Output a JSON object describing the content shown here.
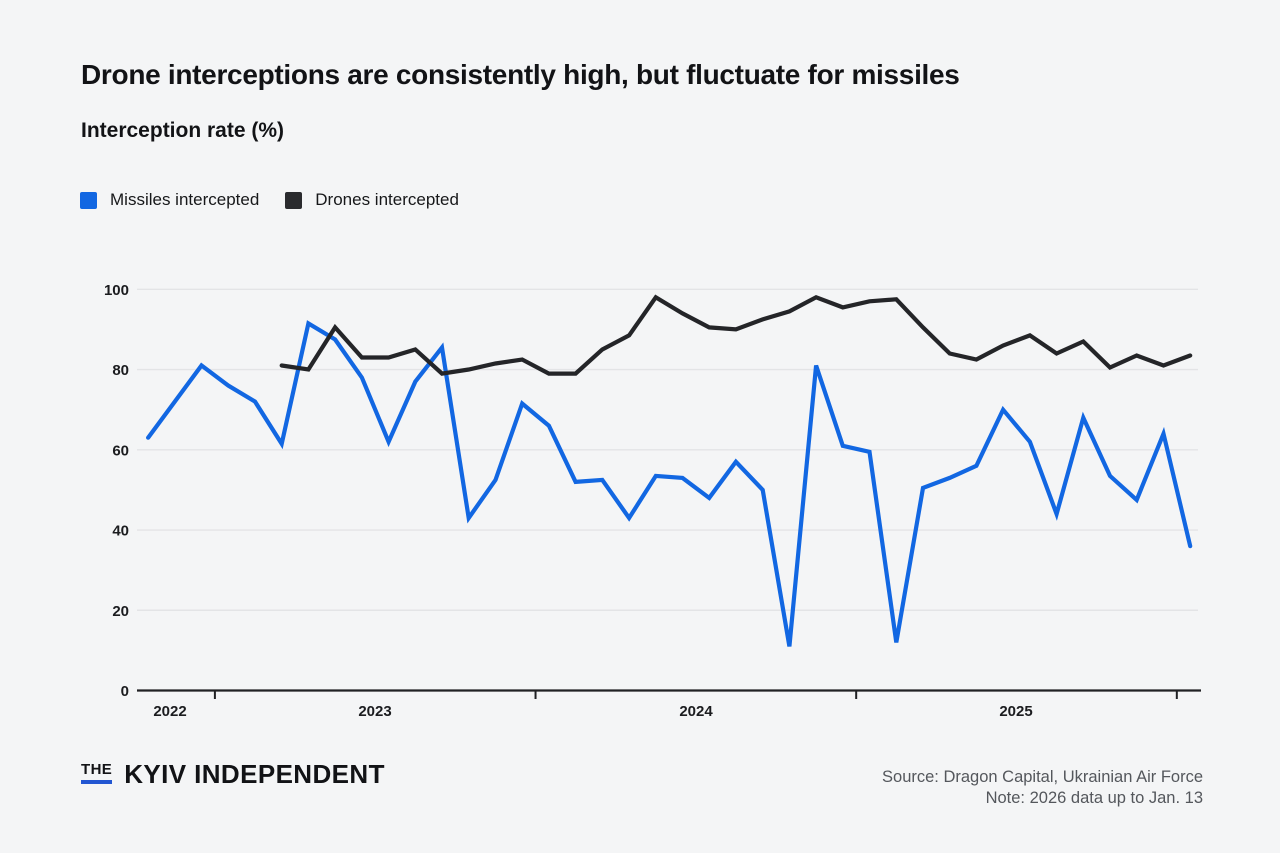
{
  "page": {
    "background": "#f4f5f6"
  },
  "header": {
    "title": "Drone interceptions are consistently high, but fluctuate for missiles",
    "subtitle": "Interception rate (%)"
  },
  "legend": {
    "items": [
      {
        "label": "Missiles intercepted",
        "color": "#1267e2"
      },
      {
        "label": "Drones intercepted",
        "color": "#2a2b2e"
      }
    ]
  },
  "chart_data": {
    "type": "line",
    "title": "Interception rate (%)",
    "x_unit": "month",
    "months": [
      "2022-10",
      "2022-11",
      "2022-12",
      "2023-01",
      "2023-02",
      "2023-03",
      "2023-04",
      "2023-05",
      "2023-06",
      "2023-07",
      "2023-08",
      "2023-09",
      "2023-10",
      "2023-11",
      "2023-12",
      "2024-01",
      "2024-02",
      "2024-03",
      "2024-04",
      "2024-05",
      "2024-06",
      "2024-07",
      "2024-08",
      "2024-09",
      "2024-10",
      "2024-11",
      "2024-12",
      "2025-01",
      "2025-02",
      "2025-03",
      "2025-04",
      "2025-05",
      "2025-06",
      "2025-07",
      "2025-08",
      "2025-09",
      "2025-10",
      "2025-11",
      "2025-12",
      "2026-01"
    ],
    "series": [
      {
        "name": "Missiles intercepted",
        "color": "#1267e2",
        "values": [
          63,
          72,
          81,
          76,
          72,
          61.5,
          91.5,
          87.5,
          78,
          62,
          77,
          85.5,
          43,
          52.5,
          71.5,
          66,
          52,
          52.5,
          43,
          53.5,
          53,
          48,
          57,
          50,
          11,
          81,
          61,
          59.5,
          12,
          50.5,
          53,
          56,
          70,
          62,
          44,
          68,
          53.5,
          47.5,
          64,
          36
        ]
      },
      {
        "name": "Drones intercepted",
        "color": "#242528",
        "values": [
          null,
          null,
          null,
          null,
          null,
          81,
          80,
          90.5,
          83,
          83,
          85,
          79,
          80,
          81.5,
          82.5,
          79,
          79,
          85,
          88.5,
          98,
          94,
          90.5,
          90,
          92.5,
          94.5,
          98,
          95.5,
          97,
          97.5,
          90.5,
          84,
          82.5,
          86,
          88.5,
          84,
          87,
          80.5,
          83.5,
          81,
          83.5
        ]
      }
    ],
    "ylim": [
      0,
      100
    ],
    "yticks": [
      0,
      20,
      40,
      60,
      80,
      100
    ],
    "year_labels": [
      "2022",
      "2023",
      "2024",
      "2025"
    ],
    "year_boundary_ticks": [
      "2023-01",
      "2024-01",
      "2025-01",
      "2026-01"
    ],
    "grid": "horizontal",
    "legend_position": "top-left"
  },
  "footer": {
    "logo_the": "THE",
    "logo_name": "KYIV INDEPENDENT",
    "source": "Source: Dragon Capital, Ukrainian Air Force",
    "note": "Note: 2026 data up to Jan. 13"
  }
}
